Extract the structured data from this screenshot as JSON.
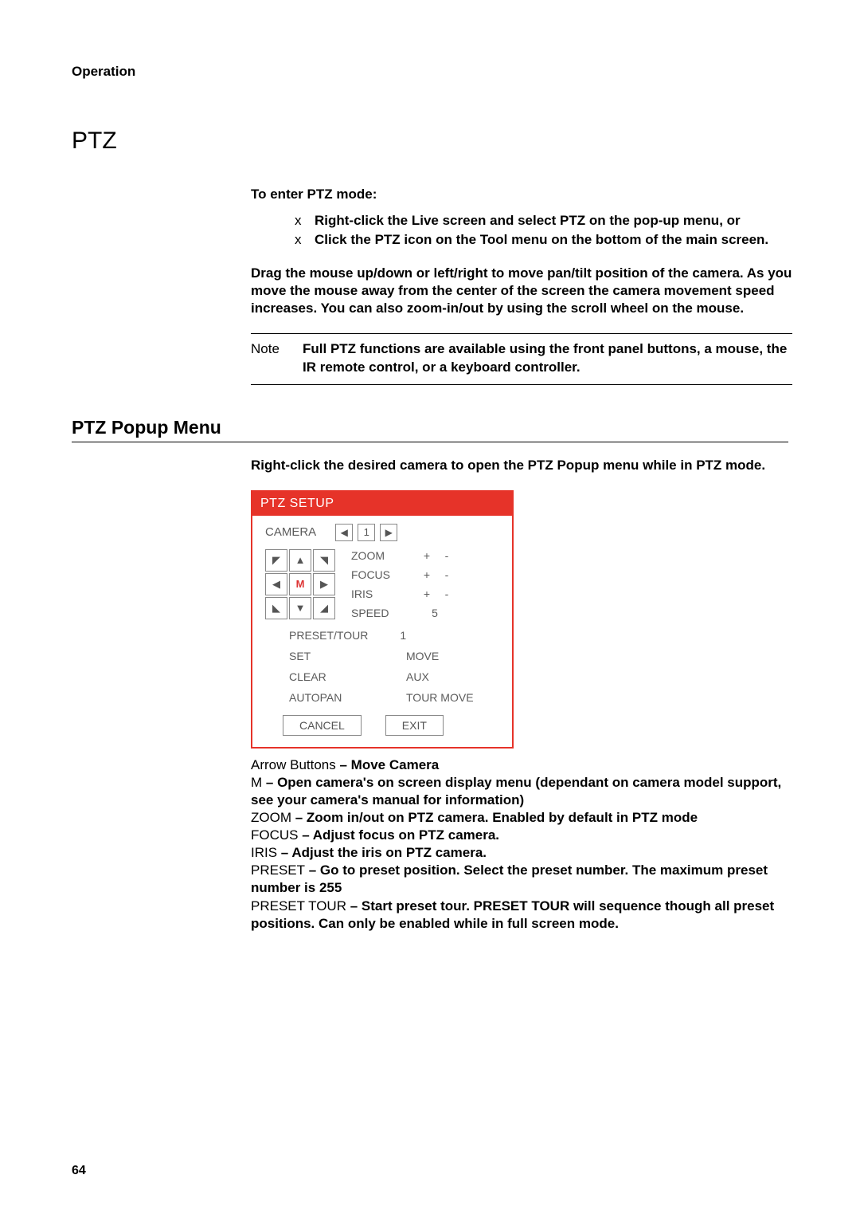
{
  "header_label": "Operation",
  "section_title": "PTZ",
  "to_enter_label": "To enter PTZ mode:",
  "bullets": [
    "Right-click the Live screen and select PTZ on the pop-up menu, or",
    "Click the PTZ icon on the Tool menu on the bottom of the main screen."
  ],
  "drag_para": "Drag the mouse up/down or left/right to move pan/tilt position of the camera. As you move the mouse away from the center of the screen the camera movement speed increases. You can also zoom-in/out by using the scroll wheel on the mouse.",
  "note_label": "Note",
  "note_body": "Full PTZ functions are available using the front panel buttons, a mouse, the IR remote control, or a keyboard controller.",
  "subsection_title": "PTZ Popup Menu",
  "popup_para": "Right-click the desired camera to open the PTZ Popup menu while in PTZ mode.",
  "ptz": {
    "header": "PTZ SETUP",
    "camera_label": "CAMERA",
    "camera_value": "1",
    "dpad_m": "M",
    "zoom": "ZOOM",
    "focus": "FOCUS",
    "iris": "IRIS",
    "speed": "SPEED",
    "speed_val": "5",
    "plus": "+",
    "minus": "-",
    "preset_tour": "PRESET/TOUR",
    "preset_val": "1",
    "set": "SET",
    "move": "MOVE",
    "clear": "CLEAR",
    "aux": "AUX",
    "autopan": "AUTOPAN",
    "tour_move": "TOUR MOVE",
    "cancel": "CANCEL",
    "exit": "EXIT"
  },
  "defs": {
    "arrow_term": "Arrow Buttons",
    "arrow_desc": " – Move Camera",
    "m_term": "M",
    "m_desc": " – Open camera's on screen display menu (dependant on camera model support, see your camera's manual for information)",
    "zoom_term": "ZOOM",
    "zoom_desc": " – Zoom in/out on PTZ camera. Enabled by default in PTZ mode",
    "focus_term": "FOCUS",
    "focus_desc": " – Adjust focus on PTZ camera.",
    "iris_term": "IRIS",
    "iris_desc": " – Adjust the iris on PTZ camera.",
    "preset_term": "PRESET",
    "preset_desc": " – Go to preset position. Select the preset number. The maximum preset number is 255",
    "tour_term": "PRESET TOUR",
    "tour_desc": " – Start preset tour. PRESET TOUR will sequence though all preset positions. Can only be enabled while in full screen mode."
  },
  "page_number": "64",
  "colors": {
    "accent": "#e63329",
    "text": "#000000",
    "panel_text": "#5b5b5b",
    "border": "#888888",
    "bg": "#ffffff"
  }
}
